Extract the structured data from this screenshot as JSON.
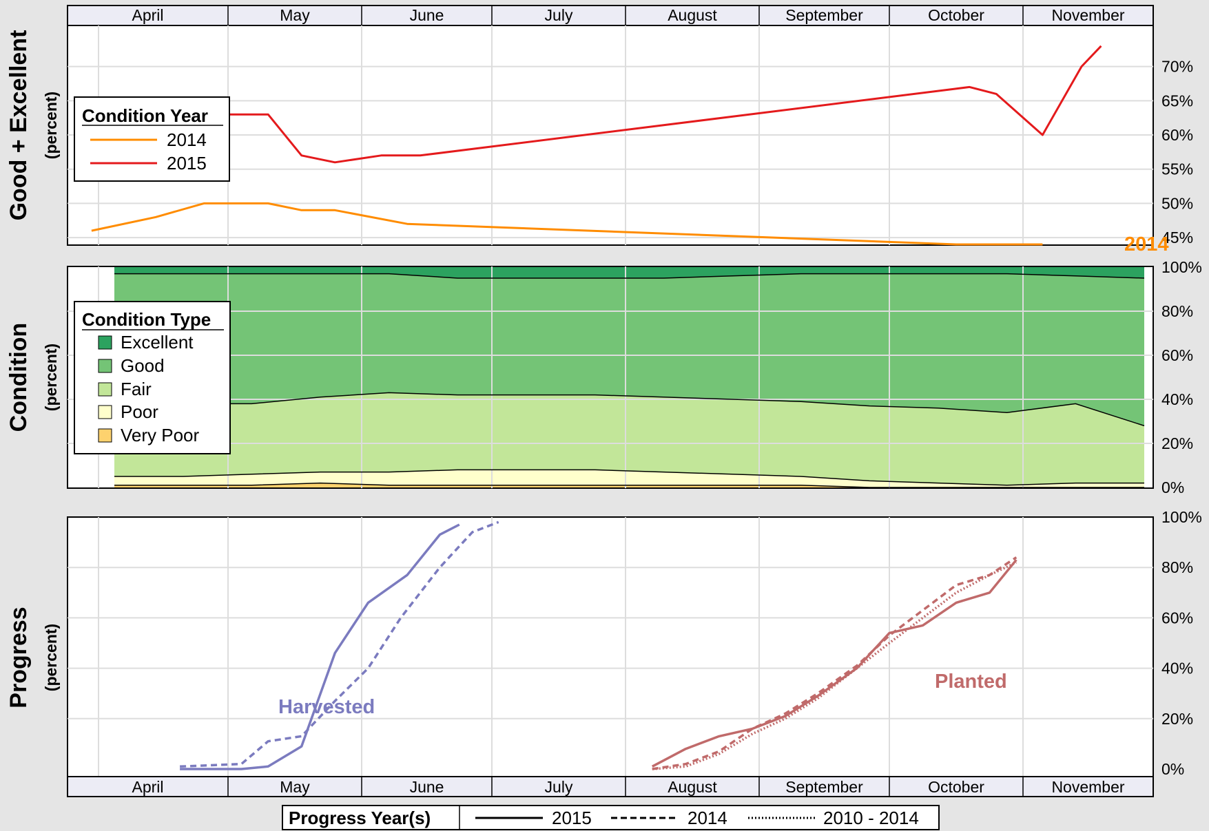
{
  "months": [
    "April",
    "May",
    "June",
    "July",
    "August",
    "September",
    "October",
    "November"
  ],
  "colors": {
    "c2014": "#ff8c00",
    "c2015": "#e41a1c",
    "excellent": "#2ca25f",
    "good": "#74c476",
    "fair": "#c2e699",
    "poor": "#ffffcc",
    "very_poor": "#fdd26e",
    "harvested": "#7b7bbf",
    "planted": "#c06a6a"
  },
  "chart_data": [
    {
      "type": "line",
      "panel": "good_excellent",
      "ylabel": "Good + Excellent",
      "ysublabel": "(percent)",
      "yticks": [
        "45%",
        "50%",
        "55%",
        "60%",
        "65%",
        "70%"
      ],
      "ylim": [
        44,
        76
      ],
      "legend": {
        "title": "Condition Year",
        "entries": [
          "2014",
          "2015"
        ],
        "position": "left"
      },
      "end_label_2014": "2014",
      "series": [
        {
          "name": "2014",
          "points": [
            [
              0.3,
              46
            ],
            [
              1.1,
              48
            ],
            [
              1.7,
              50
            ],
            [
              2.6,
              50
            ],
            [
              3.1,
              49
            ],
            [
              3.6,
              49
            ],
            [
              4.7,
              47
            ],
            [
              13,
              44
            ],
            [
              14.3,
              44
            ]
          ]
        },
        {
          "name": "2015",
          "points": [
            [
              1.6,
              63
            ],
            [
              2.6,
              63
            ],
            [
              3.1,
              57
            ],
            [
              3.6,
              56
            ],
            [
              4.3,
              57
            ],
            [
              4.9,
              57
            ],
            [
              13.2,
              67
            ],
            [
              13.6,
              66
            ],
            [
              14.3,
              60
            ],
            [
              14.9,
              70
            ],
            [
              15.2,
              73
            ]
          ]
        }
      ]
    },
    {
      "type": "area",
      "panel": "condition",
      "ylabel": "Condition",
      "ysublabel": "(percent)",
      "yticks": [
        "0%",
        "20%",
        "40%",
        "60%",
        "80%",
        "100%"
      ],
      "ylim": [
        0,
        100
      ],
      "legend": {
        "title": "Condition Type",
        "entries": [
          "Excellent",
          "Good",
          "Fair",
          "Poor",
          "Very Poor"
        ],
        "position": "left"
      },
      "x": [
        0,
        1,
        2,
        3,
        4,
        5,
        6,
        7,
        8,
        9,
        10,
        11,
        12,
        13,
        14,
        15
      ],
      "series": [
        {
          "name": "Very Poor",
          "values": [
            1,
            1,
            1,
            2,
            1,
            1,
            1,
            1,
            1,
            1,
            1,
            0,
            0,
            0,
            0,
            0
          ]
        },
        {
          "name": "Poor",
          "values": [
            4,
            4,
            5,
            5,
            6,
            7,
            7,
            7,
            6,
            5,
            4,
            3,
            2,
            1,
            2,
            2
          ]
        },
        {
          "name": "Fair",
          "values": [
            33,
            33,
            32,
            34,
            36,
            34,
            34,
            34,
            34,
            34,
            34,
            34,
            34,
            33,
            36,
            26
          ]
        },
        {
          "name": "Good",
          "values": [
            59,
            59,
            59,
            56,
            54,
            53,
            53,
            53,
            54,
            56,
            58,
            60,
            61,
            63,
            58,
            67
          ]
        },
        {
          "name": "Excellent",
          "values": [
            3,
            3,
            3,
            3,
            3,
            5,
            5,
            5,
            5,
            4,
            3,
            3,
            3,
            3,
            4,
            5
          ]
        }
      ]
    },
    {
      "type": "line",
      "panel": "progress",
      "ylabel": "Progress",
      "ysublabel": "(percent)",
      "yticks": [
        "0%",
        "20%",
        "40%",
        "60%",
        "80%",
        "100%"
      ],
      "ylim": [
        0,
        100
      ],
      "annotations": [
        "Harvested",
        "Planted"
      ],
      "legend": {
        "title": "Progress Year(s)",
        "entries": [
          "2015",
          "2014",
          "2010 - 2014"
        ],
        "position": "bottom"
      },
      "series": [
        {
          "name": "2015",
          "group": "Harvested",
          "points": [
            [
              1.4,
              0
            ],
            [
              2.2,
              0
            ],
            [
              2.6,
              1
            ],
            [
              3.1,
              9
            ],
            [
              3.6,
              46
            ],
            [
              4.1,
              66
            ],
            [
              4.7,
              77
            ],
            [
              5.2,
              93
            ],
            [
              5.5,
              97
            ]
          ]
        },
        {
          "name": "2014",
          "group": "Harvested",
          "points": [
            [
              1.4,
              1
            ],
            [
              2.2,
              2
            ],
            [
              2.6,
              11
            ],
            [
              3.1,
              13
            ],
            [
              3.6,
              27
            ],
            [
              4.1,
              40
            ],
            [
              4.6,
              60
            ],
            [
              5.2,
              80
            ],
            [
              5.7,
              94
            ],
            [
              6.1,
              98
            ]
          ]
        },
        {
          "name": "2015",
          "group": "Planted",
          "points": [
            [
              8.4,
              1
            ],
            [
              8.9,
              8
            ],
            [
              9.4,
              13
            ],
            [
              9.9,
              16
            ],
            [
              10.4,
              21
            ],
            [
              10.9,
              29
            ],
            [
              11.5,
              40
            ],
            [
              12,
              54
            ],
            [
              12.5,
              57
            ],
            [
              13,
              66
            ],
            [
              13.5,
              70
            ],
            [
              13.9,
              83
            ]
          ]
        },
        {
          "name": "2014",
          "group": "Planted",
          "points": [
            [
              8.4,
              0
            ],
            [
              8.9,
              2
            ],
            [
              9.4,
              7
            ],
            [
              9.9,
              16
            ],
            [
              10.4,
              22
            ],
            [
              10.9,
              30
            ],
            [
              11.5,
              41
            ],
            [
              12,
              53
            ],
            [
              12.5,
              63
            ],
            [
              13,
              73
            ],
            [
              13.5,
              77
            ],
            [
              13.9,
              84
            ]
          ]
        },
        {
          "name": "2010 - 2014",
          "group": "Planted",
          "points": [
            [
              8.4,
              0
            ],
            [
              8.9,
              1
            ],
            [
              9.4,
              6
            ],
            [
              9.9,
              14
            ],
            [
              10.4,
              20
            ],
            [
              10.9,
              28
            ],
            [
              11.5,
              40
            ],
            [
              12,
              50
            ],
            [
              12.5,
              60
            ],
            [
              13,
              70
            ],
            [
              13.5,
              77
            ],
            [
              13.9,
              82
            ]
          ]
        }
      ]
    }
  ]
}
